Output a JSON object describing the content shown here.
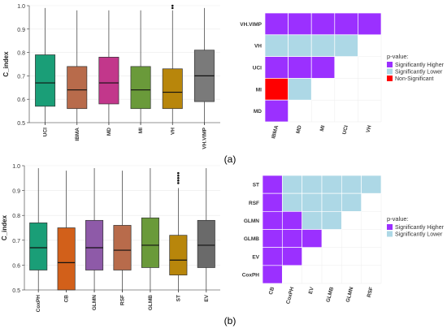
{
  "chart_data": [
    {
      "type": "box",
      "panel": "a",
      "ylabel": "C_index",
      "ylim": [
        0.5,
        1.0
      ],
      "yticks": [
        "0.5",
        "0.6",
        "0.7",
        "0.8",
        "0.9",
        "1.0"
      ],
      "categories": [
        "UCI",
        "IBMA",
        "MD",
        "MI",
        "VH",
        "VH.VIMP"
      ],
      "colors": [
        "#1a9e77",
        "#b86b4b",
        "#c2378b",
        "#6a9a3a",
        "#b8860b",
        "#7a7a7a"
      ],
      "boxes": [
        {
          "min": 0.49,
          "q1": 0.57,
          "median": 0.67,
          "q3": 0.79,
          "max": 0.99
        },
        {
          "min": 0.49,
          "q1": 0.56,
          "median": 0.64,
          "q3": 0.74,
          "max": 0.98
        },
        {
          "min": 0.49,
          "q1": 0.58,
          "median": 0.67,
          "q3": 0.78,
          "max": 0.98
        },
        {
          "min": 0.49,
          "q1": 0.56,
          "median": 0.64,
          "q3": 0.74,
          "max": 0.98
        },
        {
          "min": 0.49,
          "q1": 0.56,
          "median": 0.63,
          "q3": 0.73,
          "max": 0.98,
          "outliers": [
            0.99,
            1.0
          ]
        },
        {
          "min": 0.49,
          "q1": 0.59,
          "median": 0.7,
          "q3": 0.81,
          "max": 0.99
        }
      ]
    },
    {
      "type": "heatmap",
      "panel": "a",
      "rows": [
        "VH.VIMP",
        "VH",
        "UCI",
        "MI",
        "MD"
      ],
      "cols": [
        "IBMA",
        "MD",
        "MI",
        "UCI",
        "VH"
      ],
      "cells": [
        [
          "H",
          "H",
          "H",
          "H",
          "H"
        ],
        [
          "L",
          "L",
          "L",
          "L",
          ""
        ],
        [
          "H",
          "H",
          "H",
          "",
          ""
        ],
        [
          "N",
          "L",
          "",
          "",
          ""
        ],
        [
          "H",
          "",
          "",
          "",
          ""
        ]
      ],
      "legend": {
        "title": "p-value:",
        "items": [
          {
            "key": "H",
            "label": "Significantly Higher",
            "color": "#9b30ff"
          },
          {
            "key": "L",
            "label": "Significantly Lower",
            "color": "#add8e6"
          },
          {
            "key": "N",
            "label": "Non-Significant",
            "color": "#ff0000"
          }
        ]
      }
    },
    {
      "type": "box",
      "panel": "b",
      "ylabel": "C_index",
      "ylim": [
        0.5,
        1.0
      ],
      "yticks": [
        "0.5",
        "0.6",
        "0.7",
        "0.8",
        "0.9",
        "1.0"
      ],
      "categories": [
        "CoxPH",
        "CB",
        "GLMN",
        "RSF",
        "GLMB",
        "ST",
        "EV"
      ],
      "colors": [
        "#1a9e77",
        "#d2601a",
        "#8e5aa8",
        "#b86b4b",
        "#6a9a3a",
        "#b8860b",
        "#6a6a6a"
      ],
      "boxes": [
        {
          "min": 0.49,
          "q1": 0.58,
          "median": 0.67,
          "q3": 0.77,
          "max": 0.99
        },
        {
          "min": 0.49,
          "q1": 0.5,
          "median": 0.61,
          "q3": 0.75,
          "max": 0.98
        },
        {
          "min": 0.49,
          "q1": 0.58,
          "median": 0.67,
          "q3": 0.78,
          "max": 0.99
        },
        {
          "min": 0.49,
          "q1": 0.58,
          "median": 0.66,
          "q3": 0.76,
          "max": 0.98
        },
        {
          "min": 0.49,
          "q1": 0.59,
          "median": 0.68,
          "q3": 0.79,
          "max": 0.99
        },
        {
          "min": 0.49,
          "q1": 0.56,
          "median": 0.62,
          "q3": 0.72,
          "max": 0.91,
          "outliers": [
            0.93,
            0.94,
            0.95,
            0.96,
            0.97
          ]
        },
        {
          "min": 0.49,
          "q1": 0.59,
          "median": 0.68,
          "q3": 0.78,
          "max": 0.99
        }
      ]
    },
    {
      "type": "heatmap",
      "panel": "b",
      "rows": [
        "ST",
        "RSF",
        "GLMN",
        "GLMB",
        "EV",
        "CoxPH"
      ],
      "cols": [
        "CB",
        "CoxPH",
        "EV",
        "GLMB",
        "GLMN",
        "RSF"
      ],
      "cells": [
        [
          "H",
          "L",
          "L",
          "L",
          "L",
          "L"
        ],
        [
          "H",
          "L",
          "L",
          "L",
          "L",
          ""
        ],
        [
          "H",
          "H",
          "L",
          "L",
          "",
          ""
        ],
        [
          "H",
          "H",
          "H",
          "",
          "",
          ""
        ],
        [
          "H",
          "H",
          "",
          "",
          "",
          ""
        ],
        [
          "H",
          "",
          "",
          "",
          "",
          ""
        ]
      ],
      "legend": {
        "title": "p-value:",
        "items": [
          {
            "key": "H",
            "label": "Significantly Higher",
            "color": "#9b30ff"
          },
          {
            "key": "L",
            "label": "Significantly Lower",
            "color": "#add8e6"
          }
        ]
      }
    }
  ],
  "captions": [
    "(a)",
    "(b)"
  ]
}
